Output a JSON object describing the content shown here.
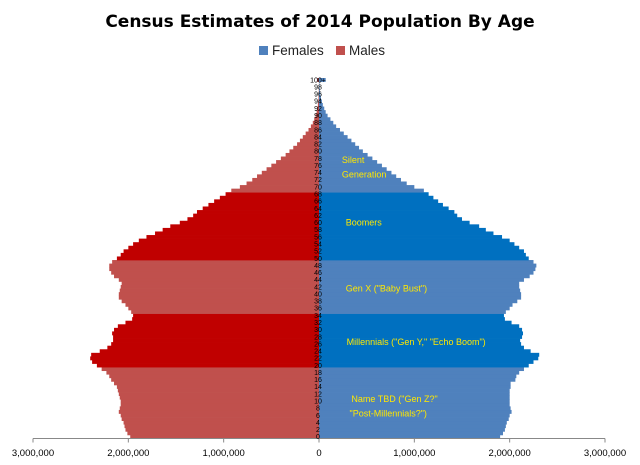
{
  "chart_data": {
    "type": "bar",
    "orientation": "horizontal",
    "title": "Census Estimates of 2014 Population By Age",
    "legend": {
      "placement": "top-center"
    },
    "xlim": [
      -3000000,
      3000000
    ],
    "x_ticks": [
      {
        "value": -3000000,
        "label": "3,000,000"
      },
      {
        "value": -2000000,
        "label": "2,000,000"
      },
      {
        "value": -1000000,
        "label": "1,000,000"
      },
      {
        "value": 0,
        "label": "0"
      },
      {
        "value": 1000000,
        "label": "1,000,000"
      },
      {
        "value": 2000000,
        "label": "2,000,000"
      },
      {
        "value": 3000000,
        "label": "3,000,000"
      }
    ],
    "age_labels": [
      "0",
      "2",
      "4",
      "6",
      "8",
      "10",
      "12",
      "14",
      "16",
      "18",
      "20",
      "22",
      "24",
      "26",
      "28",
      "30",
      "32",
      "34",
      "36",
      "38",
      "40",
      "42",
      "44",
      "46",
      "48",
      "50",
      "52",
      "54",
      "56",
      "58",
      "60",
      "62",
      "64",
      "66",
      "68",
      "70",
      "72",
      "74",
      "76",
      "78",
      "80",
      "82",
      "84",
      "86",
      "88",
      "90",
      "92",
      "94",
      "96",
      "98",
      "100+"
    ],
    "series": [
      {
        "name": "Females",
        "side": "right",
        "color": "#4f81bd",
        "highlight_color": "#0070c0",
        "values": [
          1900000,
          1930000,
          1950000,
          1960000,
          1970000,
          1990000,
          2000000,
          2020000,
          2010000,
          2000000,
          2000000,
          2000000,
          2000000,
          2000000,
          2010000,
          2010000,
          2060000,
          2070000,
          2100000,
          2150000,
          2200000,
          2250000,
          2300000,
          2310000,
          2220000,
          2150000,
          2120000,
          2110000,
          2130000,
          2140000,
          2130000,
          2100000,
          2020000,
          1950000,
          1940000,
          1960000,
          2000000,
          2030000,
          2080000,
          2120000,
          2120000,
          2110000,
          2100000,
          2100000,
          2150000,
          2210000,
          2250000,
          2270000,
          2280000,
          2250000,
          2200000,
          2170000,
          2150000,
          2100000,
          2050000,
          2000000,
          1920000,
          1830000,
          1750000,
          1680000,
          1580000,
          1500000,
          1450000,
          1420000,
          1360000,
          1300000,
          1250000,
          1200000,
          1150000,
          1100000,
          1000000,
          920000,
          860000,
          810000,
          760000,
          710000,
          660000,
          610000,
          560000,
          510000,
          460000,
          420000,
          380000,
          340000,
          300000,
          260000,
          220000,
          180000,
          150000,
          120000,
          90000,
          70000,
          55000,
          40000,
          30000,
          20000,
          14000,
          9000,
          6000,
          4000,
          70000
        ]
      },
      {
        "name": "Males",
        "side": "left",
        "color": "#c0504d",
        "highlight_color": "#c00000",
        "values": [
          1980000,
          2010000,
          2030000,
          2040000,
          2050000,
          2070000,
          2080000,
          2100000,
          2090000,
          2080000,
          2080000,
          2090000,
          2100000,
          2110000,
          2120000,
          2150000,
          2180000,
          2200000,
          2230000,
          2280000,
          2330000,
          2380000,
          2400000,
          2390000,
          2300000,
          2220000,
          2180000,
          2160000,
          2160000,
          2170000,
          2150000,
          2110000,
          2030000,
          1960000,
          1950000,
          1970000,
          2000000,
          2030000,
          2070000,
          2100000,
          2100000,
          2090000,
          2080000,
          2070000,
          2100000,
          2150000,
          2180000,
          2200000,
          2200000,
          2170000,
          2120000,
          2080000,
          2050000,
          2000000,
          1950000,
          1890000,
          1810000,
          1720000,
          1640000,
          1560000,
          1460000,
          1380000,
          1320000,
          1280000,
          1220000,
          1160000,
          1100000,
          1040000,
          980000,
          920000,
          830000,
          760000,
          700000,
          650000,
          600000,
          550000,
          500000,
          450000,
          400000,
          350000,
          310000,
          270000,
          230000,
          200000,
          170000,
          140000,
          110000,
          85000,
          65000,
          50000,
          35000,
          25000,
          18000,
          12000,
          8000,
          5000,
          3500,
          2500,
          1500,
          1000,
          20000
        ]
      }
    ],
    "annotations": [
      {
        "text": "Silent",
        "age": 77.5,
        "x": 240000
      },
      {
        "text": "Generation",
        "age": 73.5,
        "x": 240000
      },
      {
        "text": "Boomers",
        "age": 60,
        "x": 280000
      },
      {
        "text": "Gen X (\"Baby Bust\")",
        "age": 41.5,
        "x": 280000
      },
      {
        "text": "Millennials (\"Gen Y,\" \"Echo Boom\")",
        "age": 26.5,
        "x": 290000
      },
      {
        "text": "Name TBD (\"Gen Z?\"",
        "age": 10.5,
        "x": 340000
      },
      {
        "text": "\"Post-Millennials?\")",
        "age": 6.5,
        "x": 320000
      }
    ],
    "highlight_bands": [
      {
        "from_age": 20,
        "to_age": 34
      },
      {
        "from_age": 50,
        "to_age": 68
      }
    ]
  }
}
